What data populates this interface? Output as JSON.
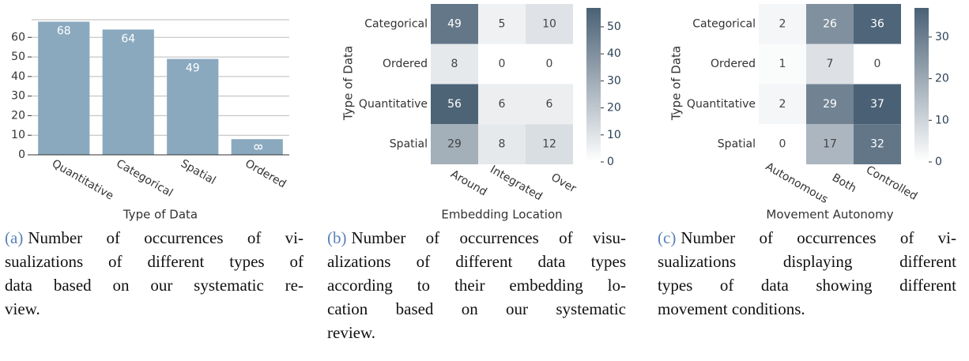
{
  "chart_data": [
    {
      "type": "bar",
      "categories": [
        "Quantitative",
        "Categorical",
        "Spatial",
        "Ordered"
      ],
      "values": [
        68,
        64,
        49,
        8
      ],
      "color": "#8aa9bf",
      "xlabel": "Type of Data",
      "ylim": [
        0,
        69
      ],
      "yticks": [
        0,
        10,
        20,
        30,
        40,
        50,
        60
      ],
      "grid": true
    },
    {
      "type": "heatmap",
      "x_categories": [
        "Around",
        "Integrated",
        "Over"
      ],
      "y_categories": [
        "Categorical",
        "Ordered",
        "Quantitative",
        "Spatial"
      ],
      "values": [
        [
          49,
          5,
          10
        ],
        [
          8,
          0,
          0
        ],
        [
          56,
          6,
          6
        ],
        [
          29,
          8,
          12
        ]
      ],
      "xlabel": "Embedding Location",
      "ylabel": "Type of Data",
      "zlim": [
        0,
        57
      ],
      "zticks": [
        0,
        10,
        20,
        30,
        40,
        50
      ],
      "colors": [
        "#ffffff",
        "#4a6175"
      ]
    },
    {
      "type": "heatmap",
      "x_categories": [
        "Autonomous",
        "Both",
        "Controlled"
      ],
      "y_categories": [
        "Categorical",
        "Ordered",
        "Quantitative",
        "Spatial"
      ],
      "values": [
        [
          2,
          26,
          36
        ],
        [
          1,
          7,
          0
        ],
        [
          2,
          29,
          37
        ],
        [
          0,
          17,
          32
        ]
      ],
      "xlabel": "Movement Autonomy",
      "ylabel": "Type of Data",
      "zlim": [
        0,
        37
      ],
      "zticks": [
        0,
        10,
        20,
        30
      ],
      "colors": [
        "#ffffff",
        "#4a6175"
      ]
    }
  ],
  "captions": [
    {
      "label": "(a)",
      "lines": [
        "Number of occurrences of vi-",
        "sualizations of different types of",
        "data based on our systematic re-",
        "view."
      ]
    },
    {
      "label": "(b)",
      "lines": [
        "Number of occurrences of visu-",
        "alizations of different data types",
        "according to their embedding lo-",
        "cation based on our systematic",
        "review."
      ]
    },
    {
      "label": "(c)",
      "lines": [
        "Number of occurrences of vi-",
        "sualizations displaying different",
        "types of data showing different",
        "movement conditions."
      ]
    }
  ]
}
